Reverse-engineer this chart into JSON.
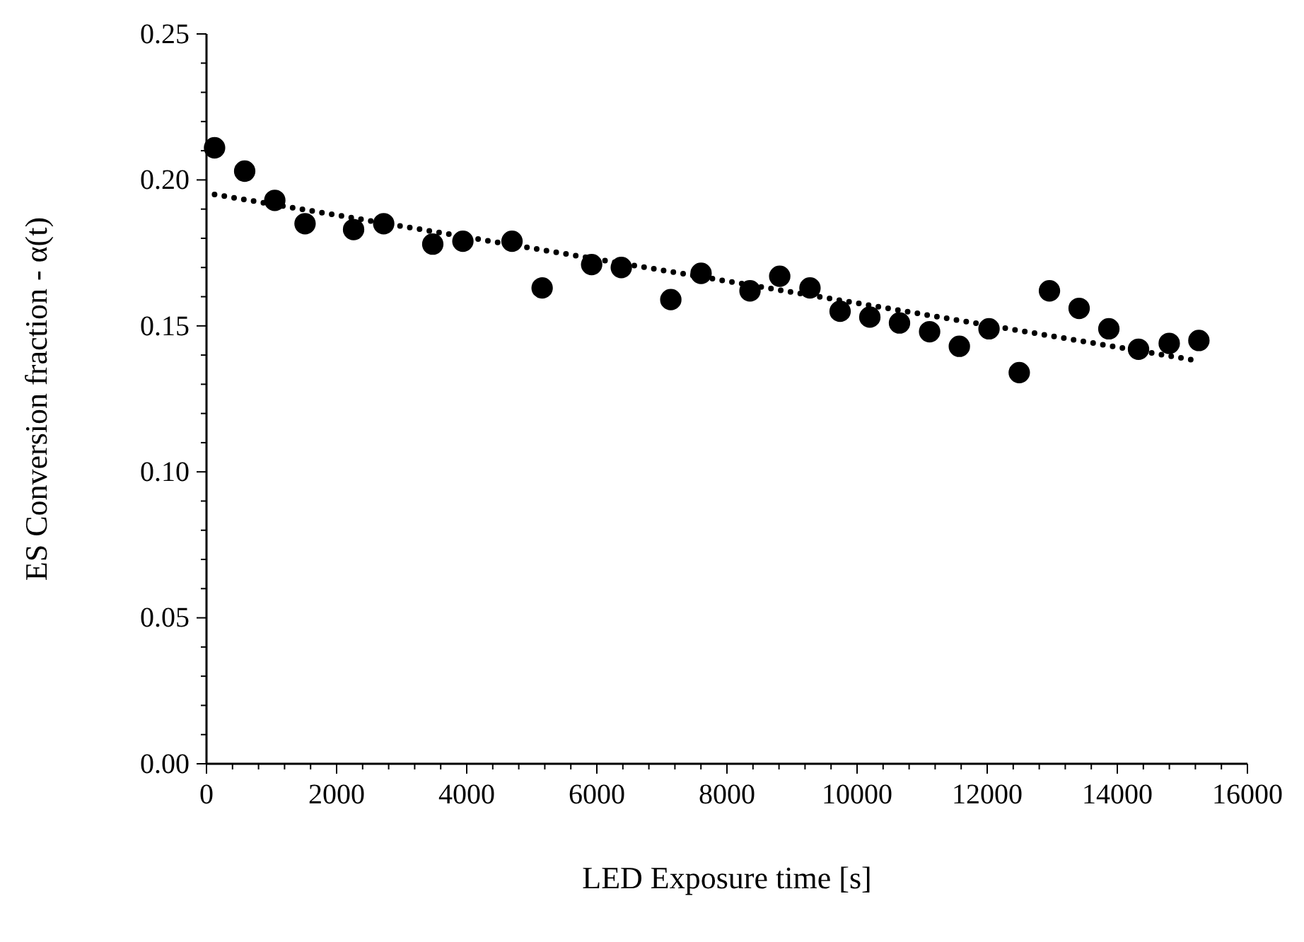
{
  "chart_data": {
    "type": "scatter",
    "xlabel": "LED Exposure time [s]",
    "ylabel": "ES Conversion fraction - α(t)",
    "xlim": [
      0,
      16000
    ],
    "xticks": [
      0,
      {
        "value": 400,
        "label": null
      },
      {
        "value": 800,
        "label": null
      },
      {
        "value": 1200,
        "label": null
      },
      {
        "value": 1600,
        "label": null
      },
      2000,
      {
        "value": 2400,
        "label": null
      },
      {
        "value": 2800,
        "label": null
      },
      {
        "value": 3200,
        "label": null
      },
      {
        "value": 3600,
        "label": null
      },
      4000,
      {
        "value": 4400,
        "label": null
      },
      {
        "value": 4800,
        "label": null
      },
      {
        "value": 5200,
        "label": null
      },
      {
        "value": 5600,
        "label": null
      },
      6000,
      {
        "value": 6400,
        "label": null
      },
      {
        "value": 6800,
        "label": null
      },
      {
        "value": 7200,
        "label": null
      },
      {
        "value": 7600,
        "label": null
      },
      8000,
      {
        "value": 8400,
        "label": null
      },
      {
        "value": 8800,
        "label": null
      },
      {
        "value": 9200,
        "label": null
      },
      {
        "value": 9600,
        "label": null
      },
      10000,
      {
        "value": 10400,
        "label": null
      },
      {
        "value": 10800,
        "label": null
      },
      {
        "value": 11200,
        "label": null
      },
      {
        "value": 11600,
        "label": null
      },
      12000,
      {
        "value": 12400,
        "label": null
      },
      {
        "value": 12800,
        "label": null
      },
      {
        "value": 13200,
        "label": null
      },
      {
        "value": 13600,
        "label": null
      },
      14000,
      {
        "value": 14400,
        "label": null
      },
      {
        "value": 14800,
        "label": null
      },
      {
        "value": 15200,
        "label": null
      },
      {
        "value": 15600,
        "label": null
      },
      16000
    ],
    "ylim": [
      0,
      0.25
    ],
    "yticks": [
      {
        "value": 0,
        "label": "0.00"
      },
      {
        "value": 0.01,
        "label": null
      },
      {
        "value": 0.02,
        "label": null
      },
      {
        "value": 0.03,
        "label": null
      },
      {
        "value": 0.04,
        "label": null
      },
      {
        "value": 0.05,
        "label": "0.05"
      },
      {
        "value": 0.06,
        "label": null
      },
      {
        "value": 0.07,
        "label": null
      },
      {
        "value": 0.08,
        "label": null
      },
      {
        "value": 0.09,
        "label": null
      },
      {
        "value": 0.1,
        "label": "0.10"
      },
      {
        "value": 0.11,
        "label": null
      },
      {
        "value": 0.12,
        "label": null
      },
      {
        "value": 0.13,
        "label": null
      },
      {
        "value": 0.14,
        "label": null
      },
      {
        "value": 0.15,
        "label": "0.15"
      },
      {
        "value": 0.16,
        "label": null
      },
      {
        "value": 0.17,
        "label": null
      },
      {
        "value": 0.18,
        "label": null
      },
      {
        "value": 0.19,
        "label": null
      },
      {
        "value": 0.2,
        "label": "0.20"
      },
      {
        "value": 0.21,
        "label": null
      },
      {
        "value": 0.22,
        "label": null
      },
      {
        "value": 0.23,
        "label": null
      },
      {
        "value": 0.24,
        "label": null
      },
      {
        "value": 0.25,
        "label": "0.25"
      }
    ],
    "grid": false,
    "series": [
      {
        "marker": "circle",
        "color": "#000000",
        "x": [
          124,
          587,
          1050,
          1515,
          2261,
          2724,
          3478,
          3941,
          4696,
          5159,
          5920,
          6376,
          7137,
          7602,
          8354,
          8811,
          9276,
          9739,
          10196,
          10652,
          11115,
          11572,
          12028,
          12493,
          12957,
          13413,
          13870,
          14326,
          14798,
          15254
        ],
        "values": [
          0.211,
          0.203,
          0.193,
          0.185,
          0.183,
          0.185,
          0.178,
          0.179,
          0.179,
          0.163,
          0.171,
          0.17,
          0.159,
          0.168,
          0.162,
          0.167,
          0.163,
          0.155,
          0.153,
          0.151,
          0.148,
          0.143,
          0.149,
          0.134,
          0.162,
          0.156,
          0.149,
          0.142,
          0.144,
          0.145
        ]
      },
      {
        "type": "line",
        "marker": "none",
        "line_style": "dotted",
        "color": "#000000",
        "x": [
          124,
          15254
        ],
        "values": [
          0.195,
          0.138
        ]
      }
    ]
  }
}
